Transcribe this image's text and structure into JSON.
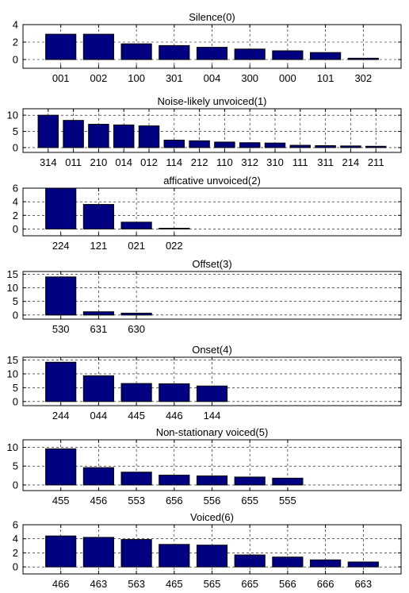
{
  "chart_data": [
    {
      "type": "bar",
      "title": "Silence(0)",
      "categories": [
        "001",
        "002",
        "100",
        "301",
        "004",
        "300",
        "000",
        "101",
        "302"
      ],
      "values": [
        2.9,
        2.9,
        1.8,
        1.6,
        1.4,
        1.2,
        1.0,
        0.8,
        0.15
      ],
      "ylim": [
        -1,
        4
      ],
      "yticks": [
        0,
        2,
        4
      ],
      "n_slots": 9,
      "grid": true,
      "bar_color": "#000080"
    },
    {
      "type": "bar",
      "title": "Noise-likely unvoiced(1)",
      "categories": [
        "314",
        "011",
        "210",
        "014",
        "012",
        "114",
        "212",
        "110",
        "312",
        "310",
        "111",
        "311",
        "214",
        "211"
      ],
      "values": [
        10.0,
        8.4,
        7.2,
        7.0,
        6.7,
        2.3,
        2.1,
        1.7,
        1.5,
        1.4,
        0.7,
        0.6,
        0.5,
        0.4
      ],
      "ylim": [
        -1.5,
        12
      ],
      "yticks": [
        0,
        5,
        10
      ],
      "n_slots": 14,
      "grid": true,
      "bar_color": "#000080"
    },
    {
      "type": "bar",
      "title": "afficative unvoiced(2)",
      "categories": [
        "224",
        "121",
        "021",
        "022"
      ],
      "values": [
        6.0,
        3.6,
        1.0,
        0.1
      ],
      "ylim": [
        -1,
        6
      ],
      "yticks": [
        0,
        2,
        4,
        6
      ],
      "n_slots": 9,
      "grid": true,
      "bar_color": "#000080"
    },
    {
      "type": "bar",
      "title": "Offset(3)",
      "categories": [
        "530",
        "631",
        "630"
      ],
      "values": [
        14.0,
        1.2,
        0.7
      ],
      "ylim": [
        -1.5,
        16
      ],
      "yticks": [
        0,
        5,
        10,
        15
      ],
      "n_slots": 9,
      "grid": true,
      "bar_color": "#000080"
    },
    {
      "type": "bar",
      "title": "Onset(4)",
      "categories": [
        "244",
        "044",
        "445",
        "446",
        "144"
      ],
      "values": [
        14.2,
        9.3,
        6.5,
        6.4,
        5.6
      ],
      "ylim": [
        -1.5,
        16
      ],
      "yticks": [
        0,
        5,
        10,
        15
      ],
      "n_slots": 9,
      "grid": true,
      "bar_color": "#000080"
    },
    {
      "type": "bar",
      "title": "Non-stationary voiced(5)",
      "categories": [
        "455",
        "456",
        "553",
        "656",
        "556",
        "655",
        "555"
      ],
      "values": [
        9.6,
        4.6,
        3.4,
        2.6,
        2.4,
        2.1,
        1.8
      ],
      "ylim": [
        -1.5,
        12
      ],
      "yticks": [
        0,
        5,
        10
      ],
      "n_slots": 9,
      "grid": true,
      "bar_color": "#000080"
    },
    {
      "type": "bar",
      "title": "Voiced(6)",
      "categories": [
        "466",
        "463",
        "563",
        "465",
        "565",
        "665",
        "566",
        "666",
        "663"
      ],
      "values": [
        4.4,
        4.2,
        3.9,
        3.2,
        3.1,
        1.7,
        1.4,
        1.0,
        0.7
      ],
      "ylim": [
        -1,
        6
      ],
      "yticks": [
        0,
        2,
        4,
        6
      ],
      "n_slots": 9,
      "grid": true,
      "bar_color": "#000080"
    }
  ]
}
